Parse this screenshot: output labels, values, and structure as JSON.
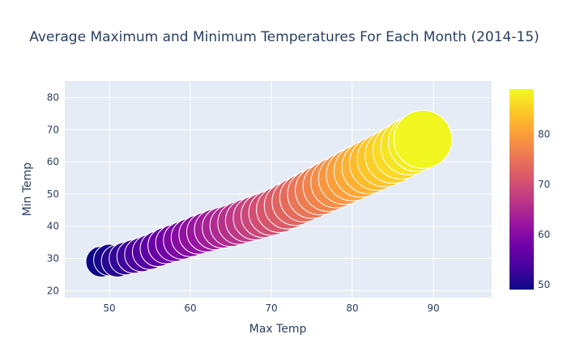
{
  "chart_data": {
    "type": "scatter",
    "title": "Average Maximum and Minimum Temperatures For Each Month (2014-15)",
    "xlabel": "Max Temp",
    "ylabel": "Min Temp",
    "xlim": [
      44.5,
      97.2
    ],
    "ylim": [
      17.8,
      85.2
    ],
    "x_ticks": [
      "50",
      "60",
      "70",
      "80",
      "90"
    ],
    "y_ticks": [
      "20",
      "30",
      "40",
      "50",
      "60",
      "70",
      "80"
    ],
    "grid": true,
    "marker_outline": "#ffffff",
    "colorscale": [
      "#0d0887",
      "#46039f",
      "#7201a8",
      "#9c179e",
      "#bd3786",
      "#d8576b",
      "#ed7953",
      "#fb9f3a",
      "#fdca26",
      "#f0f921"
    ],
    "colorbar": {
      "min": 49,
      "max": 89,
      "ticks": [
        "50",
        "60",
        "70",
        "80"
      ]
    },
    "bubble_scale": "size and color both encode Max Temp",
    "points": [
      {
        "x": 49.0,
        "y": 29.0
      },
      {
        "x": 50.0,
        "y": 29.5
      },
      {
        "x": 51.0,
        "y": 29.2
      },
      {
        "x": 52.0,
        "y": 30.0
      },
      {
        "x": 53.0,
        "y": 30.6
      },
      {
        "x": 54.0,
        "y": 31.2
      },
      {
        "x": 55.0,
        "y": 32.0
      },
      {
        "x": 56.0,
        "y": 33.0
      },
      {
        "x": 57.0,
        "y": 34.0
      },
      {
        "x": 58.0,
        "y": 34.8
      },
      {
        "x": 59.0,
        "y": 35.6
      },
      {
        "x": 60.0,
        "y": 36.5
      },
      {
        "x": 61.0,
        "y": 37.4
      },
      {
        "x": 62.0,
        "y": 38.2
      },
      {
        "x": 63.0,
        "y": 39.0
      },
      {
        "x": 64.0,
        "y": 39.6
      },
      {
        "x": 65.0,
        "y": 40.2
      },
      {
        "x": 66.0,
        "y": 41.0
      },
      {
        "x": 67.0,
        "y": 41.8
      },
      {
        "x": 68.0,
        "y": 42.6
      },
      {
        "x": 69.0,
        "y": 43.4
      },
      {
        "x": 70.0,
        "y": 44.2
      },
      {
        "x": 71.0,
        "y": 45.2
      },
      {
        "x": 72.0,
        "y": 46.4
      },
      {
        "x": 73.0,
        "y": 47.6
      },
      {
        "x": 74.0,
        "y": 48.8
      },
      {
        "x": 75.0,
        "y": 50.0
      },
      {
        "x": 76.0,
        "y": 51.2
      },
      {
        "x": 77.0,
        "y": 52.4
      },
      {
        "x": 78.0,
        "y": 53.6
      },
      {
        "x": 79.0,
        "y": 54.8
      },
      {
        "x": 80.0,
        "y": 56.0
      },
      {
        "x": 81.0,
        "y": 57.2
      },
      {
        "x": 82.0,
        "y": 58.4
      },
      {
        "x": 83.0,
        "y": 59.6
      },
      {
        "x": 84.0,
        "y": 60.8
      },
      {
        "x": 85.0,
        "y": 62.0
      },
      {
        "x": 86.0,
        "y": 63.4
      },
      {
        "x": 87.0,
        "y": 64.8
      },
      {
        "x": 88.0,
        "y": 66.0
      },
      {
        "x": 88.7,
        "y": 67.0
      }
    ]
  }
}
